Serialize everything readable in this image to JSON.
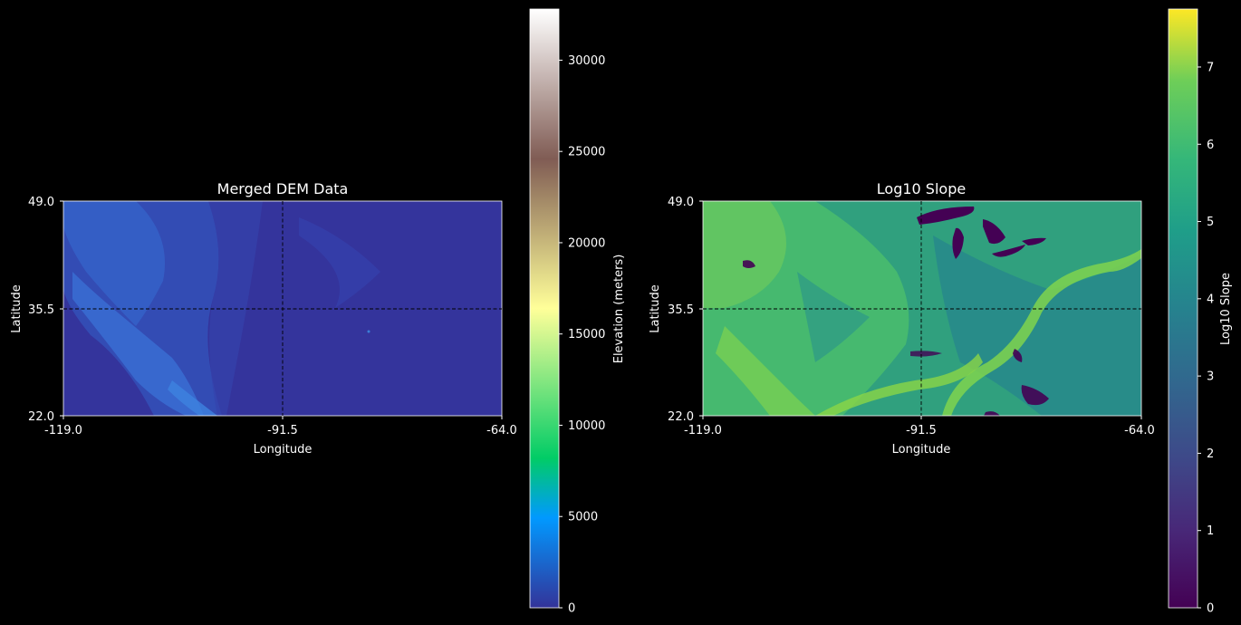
{
  "chart_data": [
    {
      "type": "heatmap",
      "title": "Merged DEM Data",
      "xlabel": "Longitude",
      "ylabel": "Latitude",
      "xticks": [
        "-119.0",
        "-91.5",
        "-64.0"
      ],
      "yticks": [
        "49.0",
        "35.5",
        "22.0"
      ],
      "xlim": [
        -119.0,
        -64.0
      ],
      "ylim": [
        22.0,
        49.0
      ],
      "crosshair": {
        "lon": -91.5,
        "lat": 35.5
      },
      "colormap": "terrain",
      "colorbar": {
        "label": "Elevation (meters)",
        "range": [
          0,
          32800
        ],
        "ticks": [
          0,
          5000,
          10000,
          15000,
          20000,
          25000,
          30000
        ],
        "tick_labels": [
          "0",
          "5000",
          "10000",
          "15000",
          "20000",
          "25000",
          "30000"
        ]
      }
    },
    {
      "type": "heatmap",
      "title": "Log10 Slope",
      "xlabel": "Longitude",
      "ylabel": "Latitude",
      "xticks": [
        "-119.0",
        "-91.5",
        "-64.0"
      ],
      "yticks": [
        "49.0",
        "35.5",
        "22.0"
      ],
      "xlim": [
        -119.0,
        -64.0
      ],
      "ylim": [
        22.0,
        49.0
      ],
      "crosshair": {
        "lon": -91.5,
        "lat": 35.5
      },
      "colormap": "viridis",
      "colorbar": {
        "label": "Log10 Slope",
        "range": [
          0,
          7.75
        ],
        "ticks": [
          0,
          1,
          2,
          3,
          4,
          5,
          6,
          7
        ],
        "tick_labels": [
          "0",
          "1",
          "2",
          "3",
          "4",
          "5",
          "6",
          "7"
        ]
      }
    }
  ]
}
